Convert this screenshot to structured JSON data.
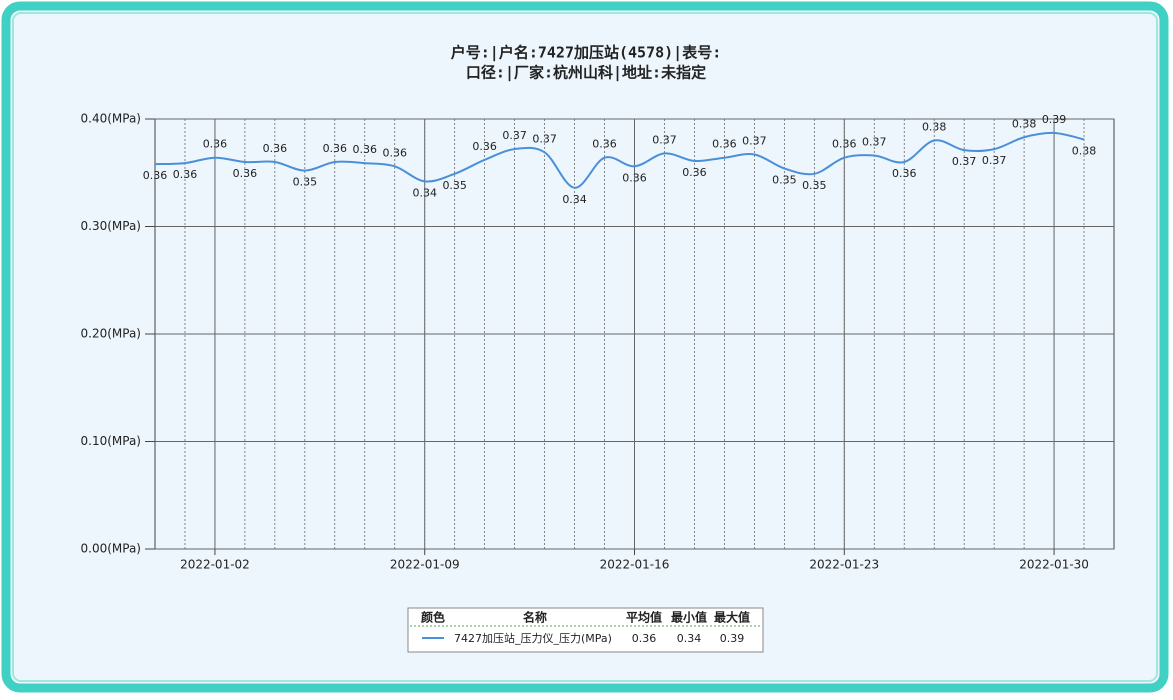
{
  "chart_data": {
    "type": "line",
    "title": [
      "户号:|户名:7427加压站(4578)|表号:",
      "口径:|厂家:杭州山科|地址:未指定"
    ],
    "x": [
      "2021-12-31",
      "2022-01-01",
      "2022-01-02",
      "2022-01-03",
      "2022-01-04",
      "2022-01-05",
      "2022-01-06",
      "2022-01-07",
      "2022-01-08",
      "2022-01-09",
      "2022-01-10",
      "2022-01-11",
      "2022-01-12",
      "2022-01-13",
      "2022-01-14",
      "2022-01-15",
      "2022-01-16",
      "2022-01-17",
      "2022-01-18",
      "2022-01-19",
      "2022-01-20",
      "2022-01-21",
      "2022-01-22",
      "2022-01-23",
      "2022-01-24",
      "2022-01-25",
      "2022-01-26",
      "2022-01-27",
      "2022-01-28",
      "2022-01-29",
      "2022-01-30",
      "2022-01-31"
    ],
    "series": [
      {
        "name": "7427加压站_压力仪_压力(MPa)",
        "color": "#4a90d9",
        "values": [
          0.358,
          0.359,
          0.364,
          0.36,
          0.36,
          0.352,
          0.36,
          0.359,
          0.356,
          0.342,
          0.349,
          0.362,
          0.372,
          0.369,
          0.336,
          0.364,
          0.356,
          0.368,
          0.361,
          0.364,
          0.367,
          0.354,
          0.349,
          0.364,
          0.366,
          0.36,
          0.38,
          0.371,
          0.372,
          0.383,
          0.387,
          0.381
        ],
        "value_labels": [
          "0.36",
          "0.36",
          "0.36",
          "0.36",
          "0.36",
          "0.35",
          "0.36",
          "0.36",
          "0.36",
          "0.34",
          "0.35",
          "0.36",
          "0.37",
          "0.37",
          "0.34",
          "0.36",
          "0.36",
          "0.37",
          "0.36",
          "0.36",
          "0.37",
          "0.35",
          "0.35",
          "0.36",
          "0.37",
          "0.36",
          "0.38",
          "0.37",
          "0.37",
          "0.38",
          "0.39",
          "0.38"
        ]
      }
    ],
    "xlim": [
      "2021-12-31",
      "2022-02-01"
    ],
    "xticks": [
      "2022-01-02",
      "2022-01-09",
      "2022-01-16",
      "2022-01-23",
      "2022-01-30"
    ],
    "ylim": [
      0,
      0.4
    ],
    "yticks": [
      {
        "value": 0,
        "label": "0.00(MPa)"
      },
      {
        "value": 0.1,
        "label": "0.10(MPa)"
      },
      {
        "value": 0.2,
        "label": "0.20(MPa)"
      },
      {
        "value": 0.3,
        "label": "0.30(MPa)"
      },
      {
        "value": 0.4,
        "label": "0.40(MPa)"
      }
    ],
    "grid": true,
    "legend": {
      "headers": [
        "颜色",
        "名称",
        "平均值",
        "最小值",
        "最大值"
      ],
      "avg": 0.36,
      "min": 0.34,
      "max": 0.39
    }
  }
}
